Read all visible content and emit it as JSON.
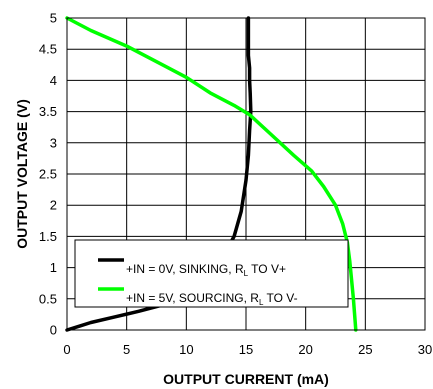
{
  "chart_data": {
    "type": "line",
    "title": "",
    "xlabel": "OUTPUT CURRENT (mA)",
    "ylabel": "OUTPUT VOLTAGE (V)",
    "xlim": [
      0,
      30
    ],
    "ylim": [
      0,
      5
    ],
    "xticks": [
      "0",
      "5",
      "10",
      "15",
      "20",
      "25",
      "30"
    ],
    "yticks": [
      "0",
      "0.5",
      "1",
      "1.5",
      "2",
      "2.5",
      "3",
      "3.5",
      "4",
      "4.5",
      "5"
    ],
    "grid": true,
    "legend_position": "lower-left",
    "series": [
      {
        "name": "+IN = 0V, SINKING, RL TO V+",
        "legend": {
          "before": "+IN = 0V, SINKING, R",
          "sub": "L",
          "after": " TO V+"
        },
        "color": "#000000",
        "x": [
          0,
          1,
          2,
          4,
          6,
          8,
          10,
          12,
          13,
          14,
          14.6,
          15,
          15.2,
          15.3,
          15.4,
          15.35,
          15.3,
          15.3,
          15.2,
          15.2,
          15.2,
          15.2
        ],
        "y": [
          0,
          0.06,
          0.12,
          0.21,
          0.3,
          0.4,
          0.55,
          0.85,
          1.15,
          1.5,
          1.9,
          2.4,
          2.8,
          3.2,
          3.5,
          3.8,
          4.0,
          4.2,
          4.4,
          4.6,
          4.8,
          5.0
        ]
      },
      {
        "name": "+IN = 5V, SOURCING, RL TO V-",
        "legend": {
          "before": "+IN = 5V, SOURCING, R",
          "sub": "L",
          "after": " TO V-"
        },
        "color": "#00ff00",
        "x": [
          0,
          2,
          5,
          8,
          10,
          12,
          14,
          15.3,
          17,
          19,
          20.5,
          21.5,
          22.5,
          23.1,
          23.5,
          23.7,
          23.85,
          24.0,
          24.1,
          24.2
        ],
        "y": [
          5.0,
          4.8,
          4.55,
          4.25,
          4.05,
          3.8,
          3.6,
          3.45,
          3.15,
          2.8,
          2.55,
          2.3,
          2.0,
          1.7,
          1.4,
          1.1,
          0.8,
          0.5,
          0.25,
          0
        ]
      }
    ]
  }
}
